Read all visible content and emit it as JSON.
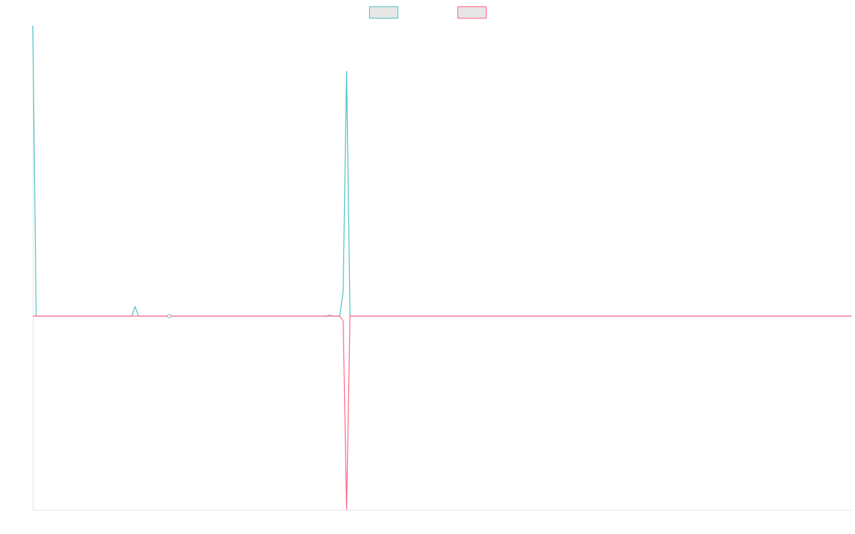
{
  "chart_data": {
    "type": "line",
    "x": [
      0,
      1,
      29,
      30,
      31,
      39,
      40,
      41,
      86,
      87,
      88,
      90,
      91,
      92,
      93,
      240
    ],
    "xlim": [
      0,
      240
    ],
    "ylim": [
      -2,
      3
    ],
    "grid": false,
    "legend": "top",
    "series": [
      {
        "color": "#4bc0c0",
        "values": [
          3,
          0,
          0,
          0.1,
          0,
          0,
          0,
          0,
          0,
          0.01,
          0,
          0,
          0.26,
          2.53,
          0,
          0
        ]
      },
      {
        "color": "#ff6384",
        "values": [
          0,
          0,
          0,
          0,
          0,
          0,
          0,
          0,
          0,
          0,
          0,
          0,
          -0.05,
          -2,
          0,
          0
        ]
      }
    ]
  }
}
